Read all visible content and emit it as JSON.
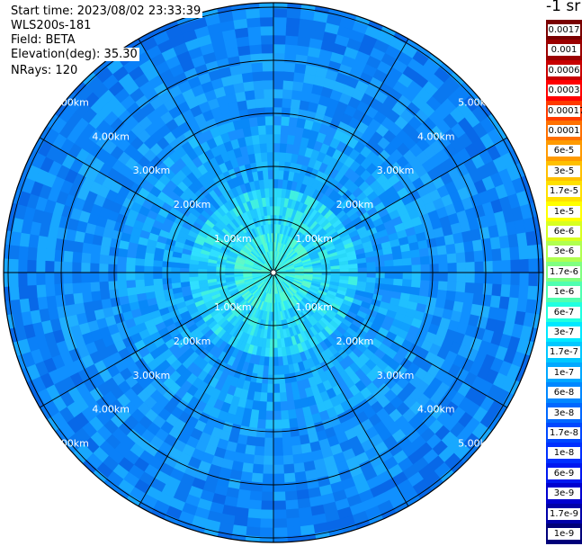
{
  "header": {
    "start_time": "Start time: 2023/08/02 23:33:39",
    "instrument": "WLS200s-181",
    "field": "Field: BETA",
    "elevation": "Elevation(deg): 35.30",
    "nrays": "NRays: 120"
  },
  "colorbar": {
    "title": "-1 sr",
    "labels": [
      "0.0017",
      "0.001",
      "0.0006",
      "0.0003",
      "0.00017",
      "0.0001",
      "6e-5",
      "3e-5",
      "1.7e-5",
      "1e-5",
      "6e-6",
      "3e-6",
      "1.7e-6",
      "1e-6",
      "6e-7",
      "3e-7",
      "1.7e-7",
      "1e-7",
      "6e-8",
      "3e-8",
      "1.7e-8",
      "1e-8",
      "6e-9",
      "3e-9",
      "1.7e-9",
      "1e-9"
    ],
    "colors": [
      "#7a0000",
      "#9b0000",
      "#c80000",
      "#ff0000",
      "#ff3a00",
      "#ff7000",
      "#ff9a00",
      "#ffc000",
      "#ffe000",
      "#ffff00",
      "#d8ff20",
      "#b0ff50",
      "#80ff80",
      "#50ffb0",
      "#20ffe0",
      "#00e8ff",
      "#00c8ff",
      "#00a8ff",
      "#0088ff",
      "#0068ff",
      "#0048ff",
      "#0030ff",
      "#0018f0",
      "#0000d0",
      "#0000a8",
      "#00007a"
    ]
  },
  "chart_data": {
    "type": "heatmap",
    "projection": "polar PPI",
    "field": "BETA",
    "range_rings": [
      "1.00km",
      "2.00km",
      "3.00km",
      "4.00km",
      "5.00km"
    ],
    "spokes_every_deg": 30,
    "colormap_note": "dominant values near 1e-7 at center decreasing to ~1e-8 at edge"
  }
}
